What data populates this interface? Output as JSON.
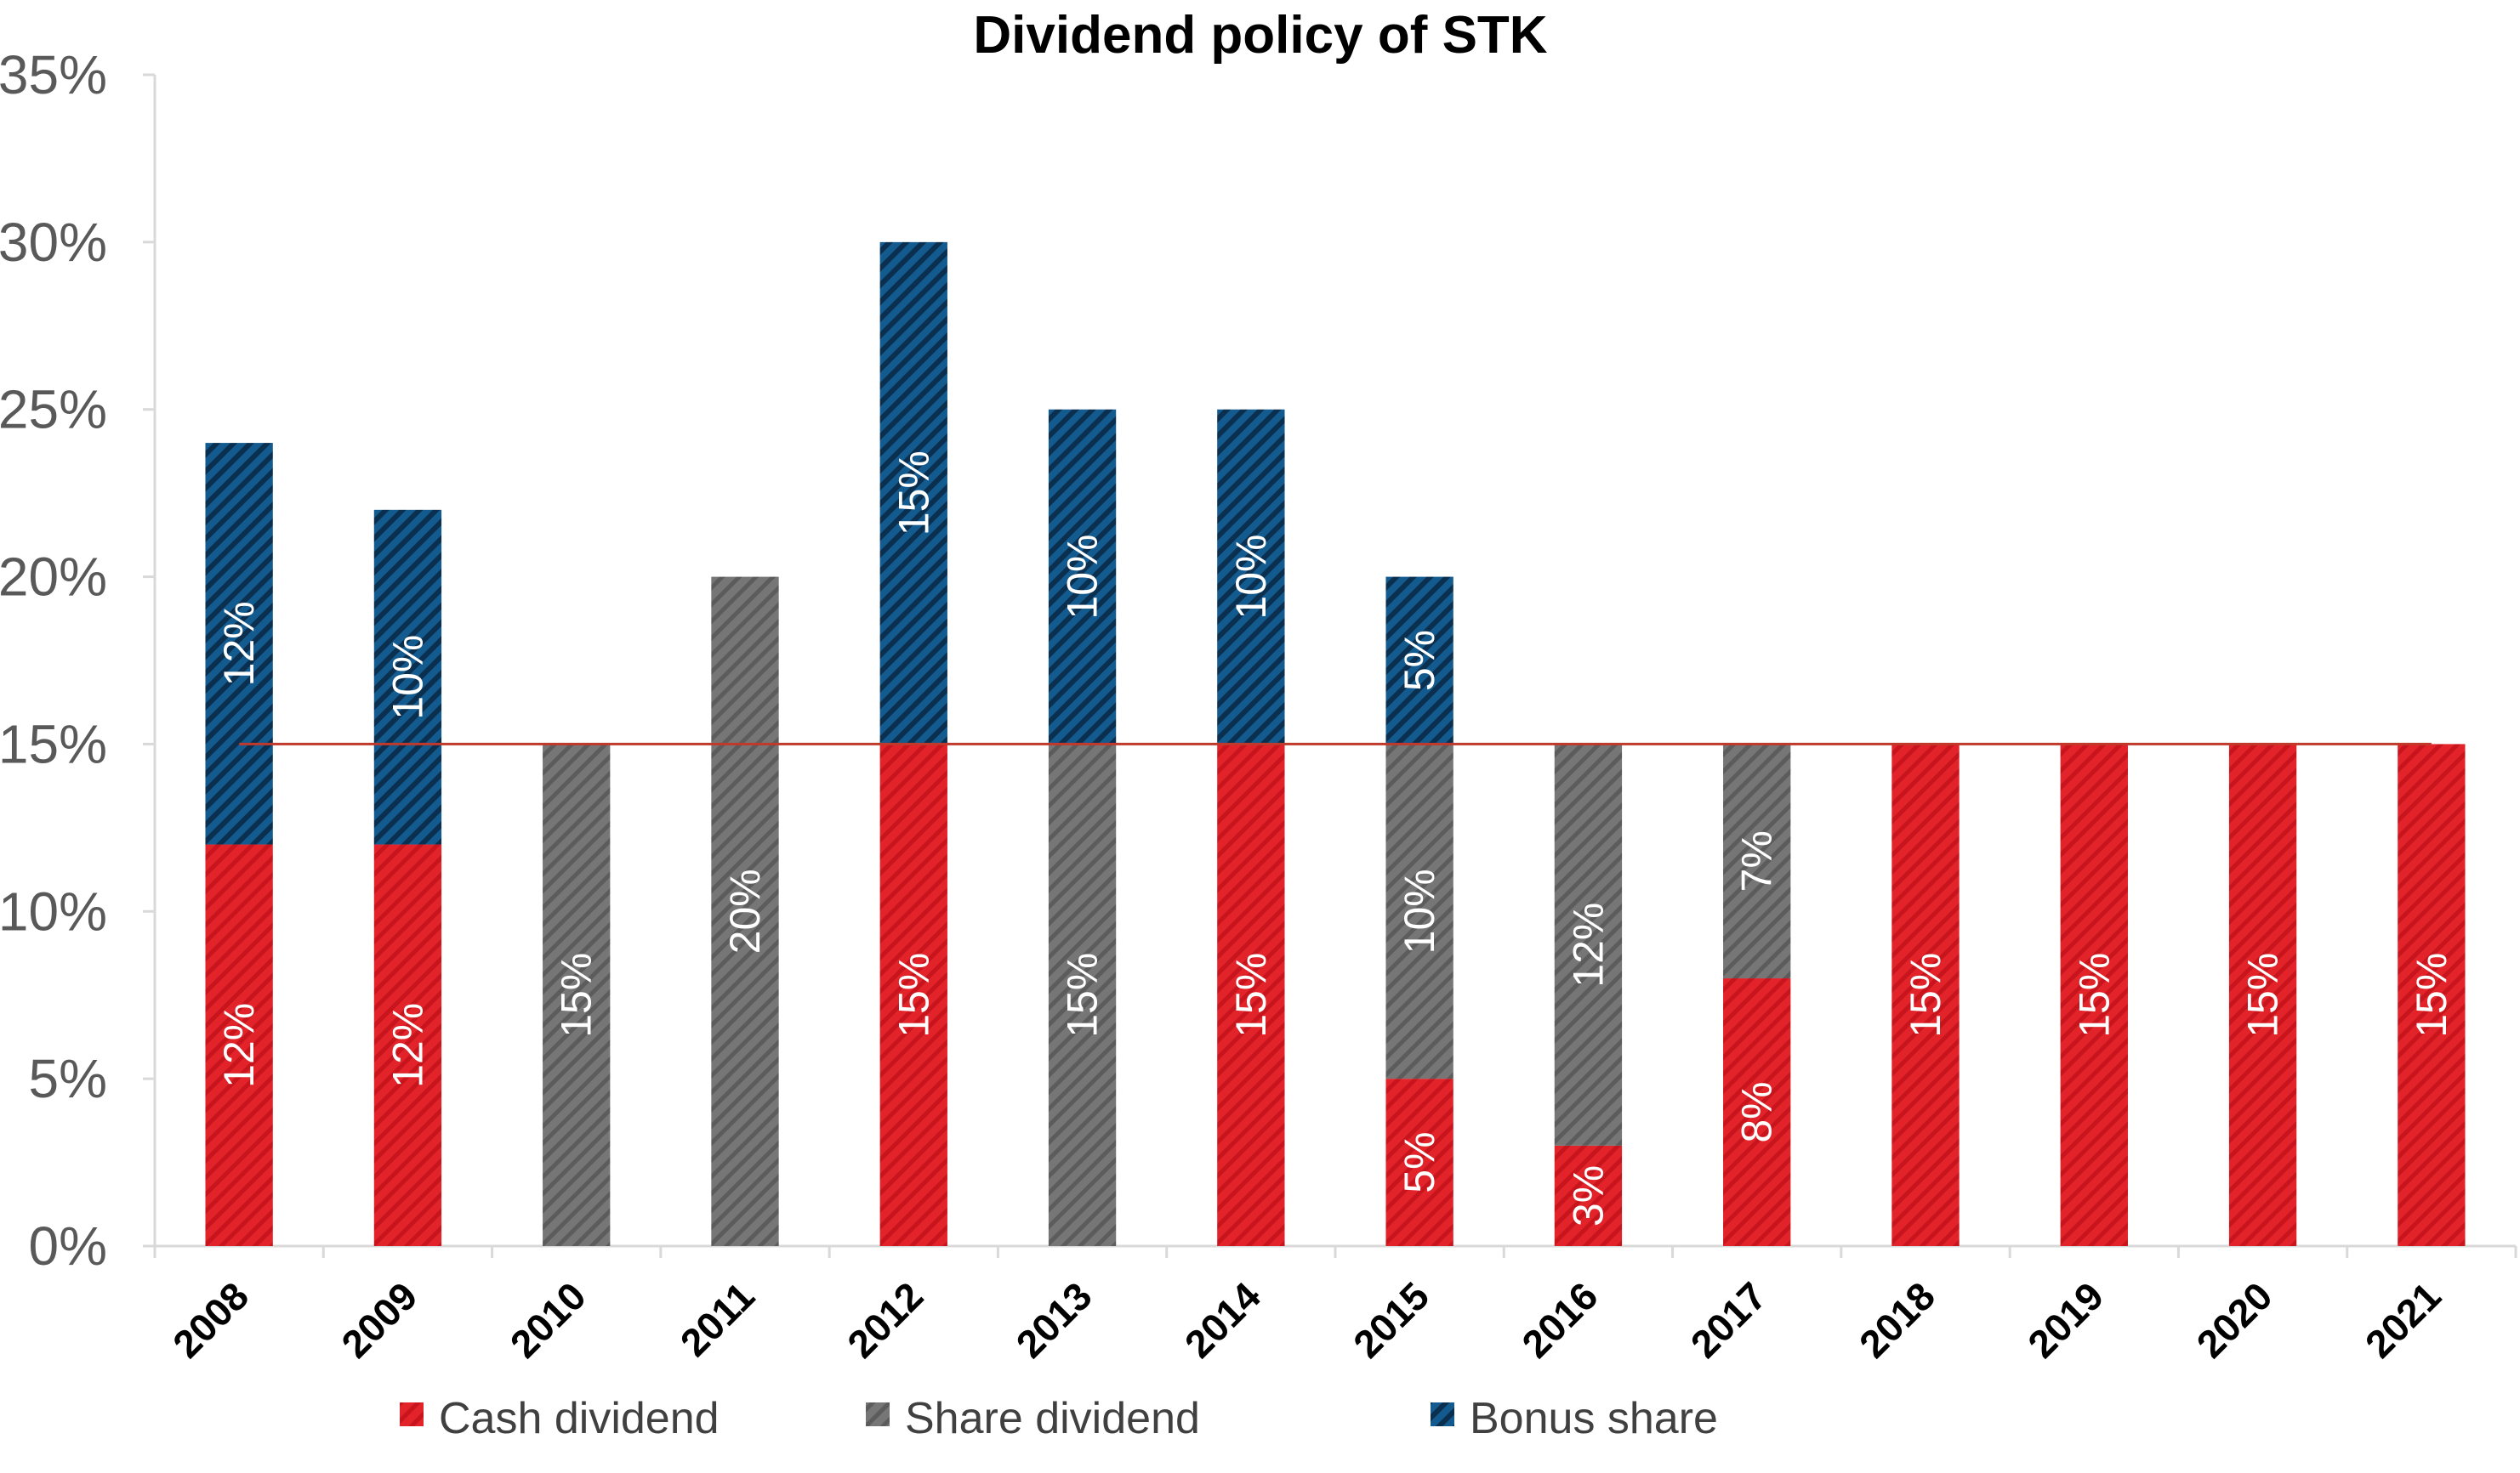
{
  "chart_data": {
    "type": "bar",
    "stacked": true,
    "title": "Dividend policy of STK",
    "xlabel": "",
    "ylabel": "",
    "categories": [
      "2008",
      "2009",
      "2010",
      "2011",
      "2012",
      "2013",
      "2014",
      "2015",
      "2016",
      "2017",
      "2018",
      "2019",
      "2020",
      "2021"
    ],
    "series": [
      {
        "name": "Cash dividend",
        "color": "#e2232a",
        "values": [
          12,
          12,
          0,
          0,
          15,
          0,
          15,
          5,
          3,
          8,
          15,
          15,
          15,
          15
        ],
        "labels": [
          "12%",
          "12%",
          "",
          "",
          "15%",
          "",
          "15%",
          "5%",
          "3%",
          "8%",
          "15%",
          "15%",
          "15%",
          "15%"
        ]
      },
      {
        "name": "Share dividend",
        "color": "#6f6f6f",
        "values": [
          0,
          0,
          15,
          20,
          0,
          15,
          0,
          10,
          12,
          7,
          0,
          0,
          0,
          0
        ],
        "labels": [
          "",
          "",
          "15%",
          "20%",
          "",
          "15%",
          "",
          "10%",
          "12%",
          "7%",
          "",
          "",
          "",
          ""
        ]
      },
      {
        "name": "Bonus share",
        "color": "#0d4a79",
        "values": [
          12,
          10,
          0,
          0,
          15,
          10,
          10,
          5,
          0,
          0,
          0,
          0,
          0,
          0
        ],
        "labels": [
          "12%",
          "10%",
          "",
          "",
          "15%",
          "10%",
          "10%",
          "5%",
          "",
          "",
          "",
          "",
          "",
          ""
        ]
      }
    ],
    "reference_line": {
      "value": 15,
      "color": "#c0392b"
    },
    "ylim": [
      0,
      35
    ],
    "yticks": [
      "0%",
      "5%",
      "10%",
      "15%",
      "20%",
      "25%",
      "30%",
      "35%"
    ],
    "ytick_values": [
      0,
      5,
      10,
      15,
      20,
      25,
      30,
      35
    ],
    "grid": false,
    "legend_position": "bottom"
  }
}
